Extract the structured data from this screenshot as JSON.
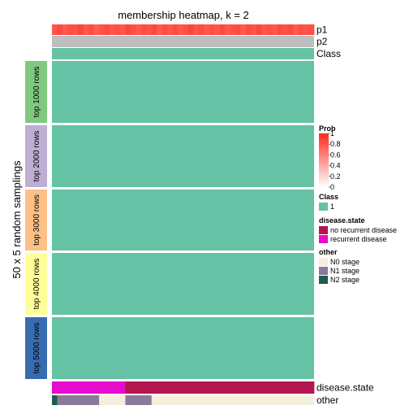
{
  "chart_data": {
    "type": "heatmap",
    "title": "membership heatmap, k = 2",
    "ylabel": "50 x 5 random samplings",
    "n_samples": 50,
    "top_annotations": [
      {
        "name": "p1",
        "values": [
          0.8,
          0.86,
          0.78,
          0.83,
          0.82,
          0.88,
          0.79,
          0.84,
          0.76,
          0.81,
          0.85,
          0.8,
          0.83,
          0.79,
          0.87,
          0.82,
          0.78,
          0.84,
          0.81,
          0.86,
          0.77,
          0.83,
          0.8,
          0.85,
          0.79,
          0.82,
          0.88,
          0.81,
          0.84,
          0.78,
          0.83,
          0.8,
          0.86,
          0.79,
          0.82,
          0.85,
          0.78,
          0.84,
          0.81,
          0.87,
          0.8,
          0.83,
          0.79,
          0.85,
          0.82,
          0.86,
          0.78,
          0.84,
          0.81,
          0.83
        ]
      },
      {
        "name": "p2",
        "values_constant": 0.2
      },
      {
        "name": "Class",
        "values_constant": 1
      }
    ],
    "row_groups": [
      {
        "label": "top 1000 rows",
        "color": "#7fc97f",
        "class": 1
      },
      {
        "label": "top 2000 rows",
        "color": "#beaed4",
        "class": 1
      },
      {
        "label": "top 3000 rows",
        "color": "#fdc086",
        "class": 1
      },
      {
        "label": "top 4000 rows",
        "color": "#ffff99",
        "class": 1
      },
      {
        "label": "top 5000 rows",
        "color": "#386cb0",
        "class": 1
      }
    ],
    "bottom_annotations": [
      {
        "name": "disease.state",
        "segments": [
          {
            "value": "recurrent disease",
            "count": 14
          },
          {
            "value": "no recurrent disease",
            "count": 36
          }
        ]
      },
      {
        "name": "other",
        "segments": [
          {
            "value": "N2 stage",
            "count": 1
          },
          {
            "value": "N1 stage",
            "count": 8
          },
          {
            "value": "N0 stage",
            "count": 5
          },
          {
            "value": "N1 stage",
            "count": 5
          },
          {
            "value": "N0 stage",
            "count": 31
          }
        ]
      }
    ],
    "legends": {
      "prob": {
        "title": "Prob",
        "ticks": [
          "1",
          "0.8",
          "0.6",
          "0.4",
          "0.2",
          "0"
        ],
        "low_color": "#ffffff",
        "high_color": "#ff2a1f"
      },
      "class": {
        "title": "Class",
        "items": [
          {
            "label": "1",
            "color": "#66c2a5"
          }
        ]
      },
      "disease_state": {
        "title": "disease.state",
        "items": [
          {
            "label": "no recurrent disease",
            "color": "#b3164f"
          },
          {
            "label": "recurrent disease",
            "color": "#e60bcd"
          }
        ]
      },
      "other": {
        "title": "other",
        "items": [
          {
            "label": "N0 stage",
            "color": "#f2f0dc"
          },
          {
            "label": "N1 stage",
            "color": "#8a7a9a"
          },
          {
            "label": "N2 stage",
            "color": "#1f5b4b"
          }
        ]
      }
    },
    "colors": {
      "class_1": "#66c2a5",
      "p2": "#bebebe"
    }
  }
}
